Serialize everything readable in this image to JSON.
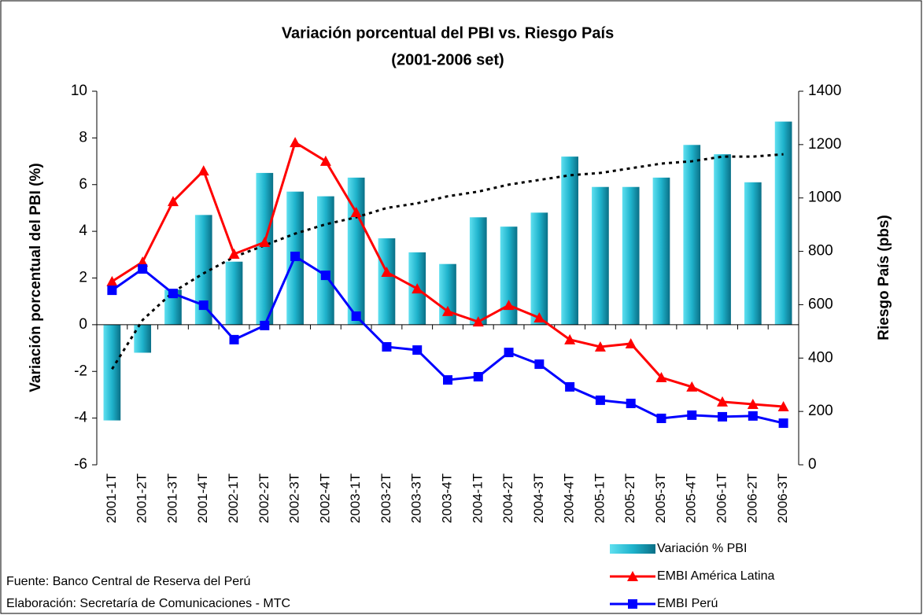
{
  "chart_data": {
    "type": "bar",
    "title": "Variación porcentual del PBI vs. Riesgo País",
    "subtitle": "(2001-2006 set)",
    "y_label": "Variación porcentual del PBI (%)",
    "y2_label": "Riesgo País (pbs)",
    "categories": [
      "2001-1T",
      "2001-2T",
      "2001-3T",
      "2001-4T",
      "2002-1T",
      "2002-2T",
      "2002-3T",
      "2002-4T",
      "2003-1T",
      "2003-2T",
      "2003-3T",
      "2003-4T",
      "2004-1T",
      "2004-2T",
      "2004-3T",
      "2004-4T",
      "2005-1T",
      "2005-2T",
      "2005-3T",
      "2005-4T",
      "2006-1T",
      "2006-2T",
      "2006-3T"
    ],
    "series": [
      {
        "name": "Variación % PBI",
        "type": "bar",
        "axis": "y",
        "color": "#1fb3cc",
        "values": [
          -4.1,
          -1.2,
          1.5,
          4.7,
          2.7,
          6.5,
          5.7,
          5.5,
          6.3,
          3.7,
          3.1,
          2.6,
          4.6,
          4.2,
          4.8,
          7.2,
          5.9,
          5.9,
          6.3,
          7.7,
          7.3,
          6.1,
          8.7
        ]
      },
      {
        "name": "EMBI América Latina",
        "type": "line",
        "axis": "y2",
        "color": "#ff0000",
        "marker": "triangle",
        "values": [
          687,
          760,
          987,
          1102,
          790,
          834,
          1208,
          1138,
          946,
          722,
          660,
          575,
          536,
          598,
          551,
          469,
          442,
          454,
          327,
          292,
          236,
          227,
          218
        ]
      },
      {
        "name": "EMBI Perú",
        "type": "line",
        "axis": "y2",
        "color": "#0000ff",
        "marker": "square",
        "values": [
          654,
          734,
          642,
          598,
          469,
          522,
          781,
          710,
          557,
          442,
          430,
          318,
          330,
          421,
          377,
          292,
          242,
          230,
          174,
          186,
          180,
          183,
          156
        ]
      }
    ],
    "trendline": {
      "axis": "y",
      "color": "#000000",
      "style": "dotted",
      "values": [
        -1.9,
        0.2,
        1.4,
        2.2,
        2.9,
        3.4,
        3.9,
        4.3,
        4.6,
        5.0,
        5.2,
        5.5,
        5.7,
        6.0,
        6.2,
        6.4,
        6.5,
        6.7,
        6.9,
        7.0,
        7.2,
        7.2,
        7.3
      ]
    },
    "ylim": [
      -6,
      10
    ],
    "yticks": [
      -6,
      -4,
      -2,
      0,
      2,
      4,
      6,
      8,
      10
    ],
    "y2lim": [
      0,
      1400
    ],
    "y2ticks": [
      0,
      200,
      400,
      600,
      800,
      1000,
      1200,
      1400
    ],
    "grid": false,
    "legend": "bottom-right",
    "notes": [
      "Fuente: Banco Central de Reserva del Perú",
      "Elaboración: Secretaría de Comunicaciones - MTC"
    ]
  }
}
